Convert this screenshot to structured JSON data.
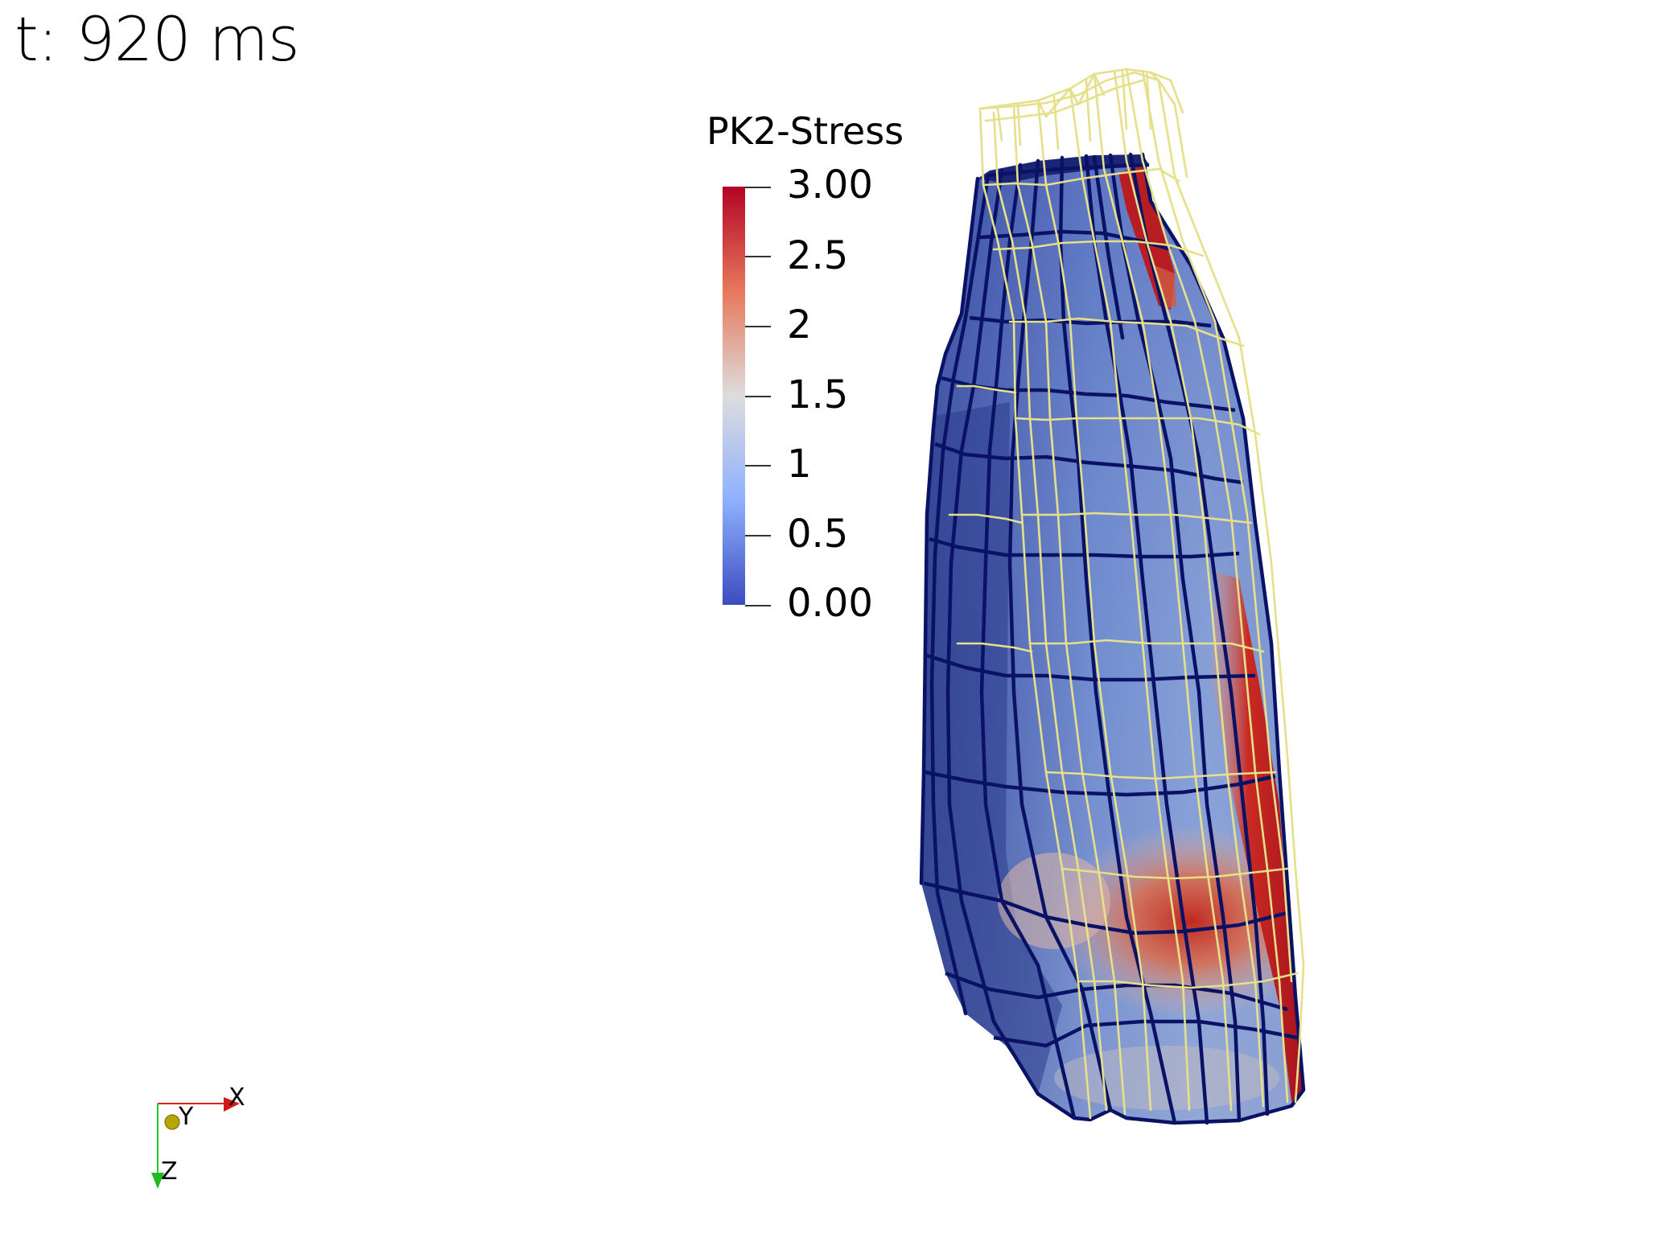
{
  "overlay": {
    "time_text": "t: 920 ms"
  },
  "colorbar": {
    "title": "PK2-Stress",
    "range": [
      0,
      3
    ],
    "colormap": "Cool to Warm",
    "colors": {
      "min": "#3b4cc0",
      "mid": "#dddddd",
      "max": "#b40426"
    },
    "tick_labels": [
      "3.00",
      "2.5",
      "2",
      "1.5",
      "1",
      "0.5",
      "0.00"
    ]
  },
  "orientation_axes": {
    "x_label": "X",
    "y_label": "Y",
    "z_label": "Z",
    "colors": {
      "x": "#e0201b",
      "y": "#b8a600",
      "z": "#22cc22"
    }
  },
  "mesh": {
    "surface_edge_color": "#0a1266",
    "wireframe_color": "#e6e08a"
  }
}
